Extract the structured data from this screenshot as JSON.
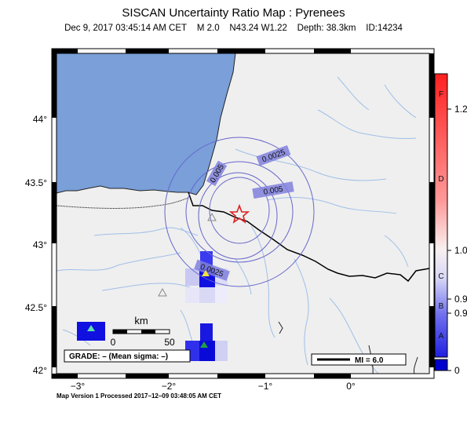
{
  "title": "SISCAN Uncertainty Ratio Map : Pyrenees",
  "subtitle": {
    "datetime": "Dec  9, 2017 03:45:14 AM CET",
    "magnitude": "M 2.0",
    "location": "N43.24 W1.22",
    "depth": "Depth: 38.3km",
    "id": "ID:14234"
  },
  "y_axis_labels": [
    "44°",
    "43.5°",
    "43°",
    "42.5°",
    "42°"
  ],
  "x_axis_labels": [
    "−3°",
    "−2°",
    "−1°",
    "0°"
  ],
  "contour_labels": [
    "0.0025",
    "0.005",
    "0.005",
    "0.0025"
  ],
  "scale_bar": {
    "title": "km",
    "min": "0",
    "max": "50"
  },
  "grade_label": "GRADE: – (Mean sigma: –)",
  "mi_label": "MI = 6.0",
  "colorbar": {
    "grade_letters": [
      "F",
      "D",
      "C",
      "B",
      "A"
    ],
    "values": [
      "1.2",
      "1.0",
      "0.9",
      "0.9",
      "0"
    ]
  },
  "footer": "Map Version 1 Processed 2017–12–09 03:48:05 AM CET",
  "colors": {
    "sea": "#7a9fd9",
    "land": "#efefef",
    "rivers": "#9fbfe8",
    "contours": "#6666cc",
    "epicenter": "#e02020"
  }
}
